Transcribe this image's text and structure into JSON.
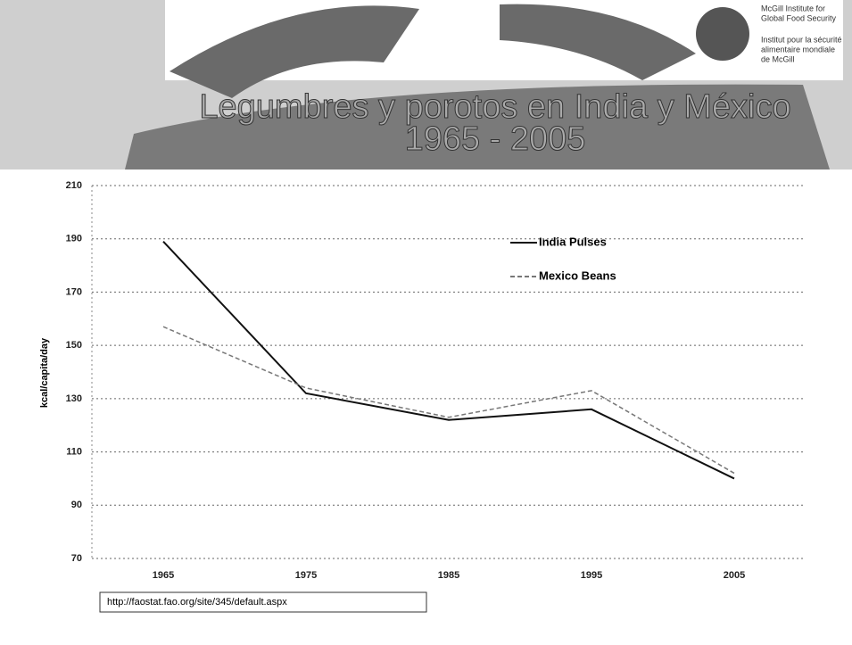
{
  "logo": {
    "line1": "McGill Institute for",
    "line2": "Global Food Security",
    "line3": "Institut pour la sécurité",
    "line4": "alimentaire mondiale",
    "line5": "de McGill"
  },
  "chart_data": {
    "type": "line",
    "title": "Legumbres y porotos en India y México",
    "subtitle": "1965 - 2005",
    "y_label": "kcal/capita/day",
    "source": "http://faostat.fao.org/site/345/default.aspx",
    "categories": [
      "1965",
      "1975",
      "1985",
      "1995",
      "2005"
    ],
    "series": [
      {
        "name": "India Pulses",
        "color": "#111111",
        "values": [
          189,
          132,
          122,
          126,
          100
        ]
      },
      {
        "name": "Mexico Beans",
        "color": "#777777",
        "values": [
          157,
          134,
          123,
          133,
          102
        ]
      }
    ],
    "ylim": [
      70,
      210
    ],
    "yticks": [
      70,
      90,
      110,
      130,
      150,
      170,
      190,
      210
    ],
    "grid": true
  }
}
